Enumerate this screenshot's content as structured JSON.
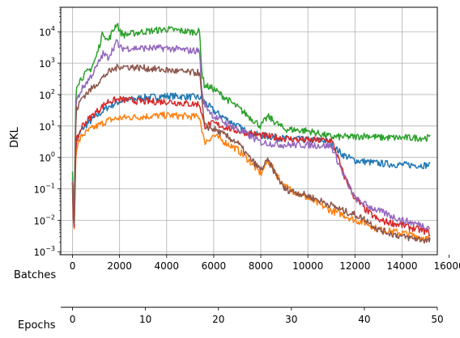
{
  "chart_data": {
    "type": "line",
    "title": "",
    "ylabel": "DKL",
    "yscale": "log",
    "ylim": [
      0.0008,
      60000
    ],
    "xlim": [
      -500,
      15500
    ],
    "grid": true,
    "legend": "none",
    "y_ticks": [
      {
        "value": 0.001,
        "base": "10",
        "exp": "−3"
      },
      {
        "value": 0.01,
        "base": "10",
        "exp": "−2"
      },
      {
        "value": 0.1,
        "base": "10",
        "exp": "−1"
      },
      {
        "value": 1,
        "base": "10",
        "exp": "0"
      },
      {
        "value": 10,
        "base": "10",
        "exp": "1"
      },
      {
        "value": 100,
        "base": "10",
        "exp": "2"
      },
      {
        "value": 1000,
        "base": "10",
        "exp": "3"
      },
      {
        "value": 10000,
        "base": "10",
        "exp": "4"
      }
    ],
    "x_axis_batches": {
      "label": "Batches",
      "ticks": [
        0,
        2000,
        4000,
        6000,
        8000,
        10000,
        12000,
        14000,
        16000
      ]
    },
    "x_axis_epochs": {
      "label": "Epochs",
      "ticks": [
        0,
        10,
        20,
        30,
        40,
        50
      ],
      "batches_per_epoch": 310
    },
    "series": [
      {
        "color": "#1f77b4",
        "x": [
          0,
          60,
          150,
          400,
          800,
          1500,
          2000,
          3000,
          4000,
          5000,
          5400,
          5600,
          6000,
          7000,
          7500,
          8000,
          9000,
          10000,
          10800,
          11000,
          11500,
          12000,
          13000,
          14000,
          15200
        ],
        "y": [
          0.3,
          0.01,
          3,
          8,
          15,
          40,
          60,
          80,
          90,
          85,
          80,
          60,
          30,
          10,
          6,
          5,
          4,
          3.6,
          3.4,
          2.5,
          1.2,
          0.8,
          0.65,
          0.58,
          0.56
        ]
      },
      {
        "color": "#ff7f0e",
        "x": [
          0,
          60,
          150,
          400,
          800,
          1500,
          2000,
          3000,
          4000,
          5000,
          5400,
          5600,
          6000,
          7000,
          7500,
          8000,
          8300,
          9000,
          10000,
          11000,
          11500,
          12000,
          12500,
          13000,
          14000,
          15200
        ],
        "y": [
          0.2,
          0.003,
          2,
          5,
          8,
          15,
          18,
          20,
          22,
          20,
          20,
          3,
          5,
          1.8,
          0.8,
          0.3,
          0.8,
          0.12,
          0.05,
          0.02,
          0.015,
          0.01,
          0.008,
          0.005,
          0.004,
          0.0025
        ]
      },
      {
        "color": "#2ca02c",
        "x": [
          0,
          60,
          150,
          400,
          800,
          1000,
          1300,
          1500,
          1900,
          2000,
          2200,
          3000,
          4000,
          5000,
          5400,
          5500,
          5600,
          6000,
          7000,
          8000,
          8300,
          9000,
          10000,
          11000,
          12000,
          12500,
          13000,
          14000,
          15200
        ],
        "y": [
          0.3,
          0.01,
          200,
          350,
          700,
          1500,
          10000,
          5000,
          20000,
          10000,
          8000,
          10000,
          12000,
          10000,
          10000,
          500,
          200,
          150,
          40,
          10,
          20,
          8,
          7,
          4.5,
          4.5,
          5,
          4.3,
          4.2,
          4.2
        ]
      },
      {
        "color": "#d62728",
        "x": [
          0,
          60,
          150,
          400,
          800,
          1500,
          2000,
          3000,
          4000,
          5000,
          5400,
          5600,
          6000,
          7000,
          8000,
          9000,
          10000,
          11000,
          11200,
          11500,
          12000,
          12500,
          13000,
          14000,
          15200
        ],
        "y": [
          0.1,
          0.003,
          3,
          10,
          20,
          60,
          70,
          60,
          60,
          50,
          50,
          10,
          12,
          7,
          5,
          4,
          3.5,
          3.5,
          1.5,
          0.3,
          0.05,
          0.02,
          0.01,
          0.007,
          0.004
        ]
      },
      {
        "color": "#9467bd",
        "x": [
          0,
          60,
          150,
          400,
          800,
          1000,
          1300,
          1500,
          1900,
          2000,
          3000,
          4000,
          5000,
          5400,
          5500,
          5600,
          6000,
          7000,
          8000,
          9000,
          10000,
          11000,
          11500,
          12000,
          12500,
          13000,
          14000,
          15200
        ],
        "y": [
          0.15,
          0.005,
          60,
          150,
          400,
          700,
          2000,
          1500,
          5000,
          3000,
          3000,
          3000,
          2500,
          2500,
          100,
          50,
          20,
          8,
          3,
          2.5,
          2.5,
          2.3,
          0.3,
          0.05,
          0.03,
          0.02,
          0.01,
          0.006
        ]
      },
      {
        "color": "#8c564b",
        "x": [
          0,
          60,
          150,
          400,
          800,
          1500,
          2000,
          3000,
          4000,
          5000,
          5400,
          5600,
          6000,
          7000,
          7500,
          8000,
          8300,
          9000,
          10000,
          11000,
          11500,
          12000,
          12500,
          13000,
          14000,
          15200
        ],
        "y": [
          0.15,
          0.003,
          30,
          80,
          150,
          500,
          800,
          700,
          600,
          500,
          500,
          10,
          8,
          3,
          1,
          0.4,
          0.8,
          0.1,
          0.06,
          0.03,
          0.02,
          0.015,
          0.01,
          0.005,
          0.003,
          0.0022
        ]
      }
    ]
  }
}
